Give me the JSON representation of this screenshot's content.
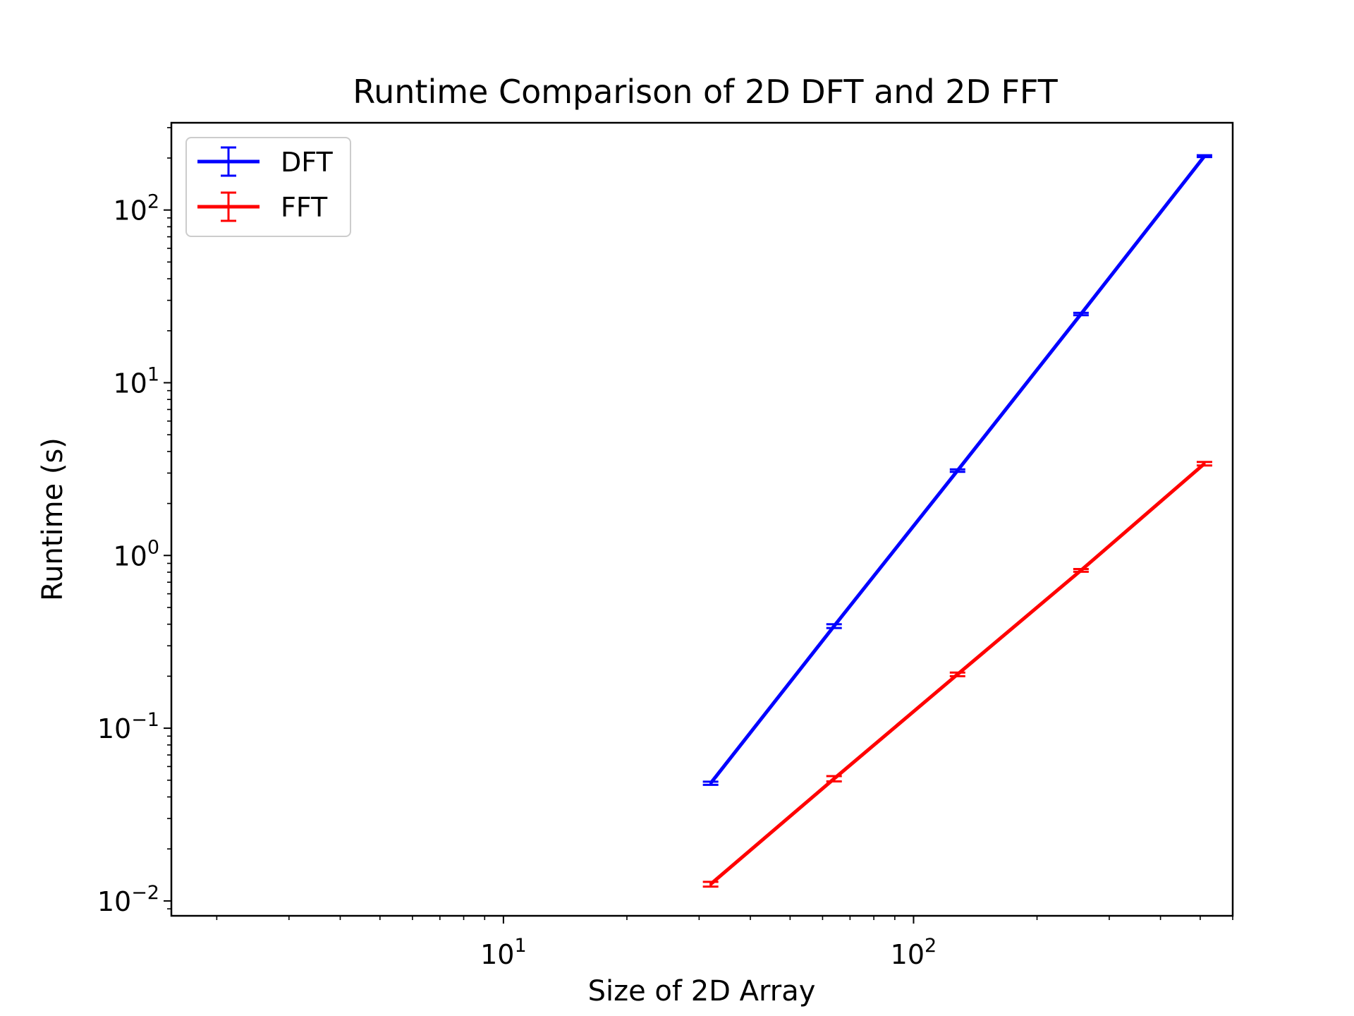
{
  "chart_data": {
    "type": "line",
    "title": "Runtime Comparison of 2D DFT and 2D FFT",
    "xlabel": "Size of 2D Array",
    "ylabel": "Runtime (s)",
    "xscale": "log",
    "yscale": "log",
    "xlim": [
      1.55,
      600
    ],
    "ylim": [
      0.0082,
      320
    ],
    "xticks": [
      {
        "value": 10,
        "label": "10",
        "exp": "1"
      },
      {
        "value": 100,
        "label": "10",
        "exp": "2"
      }
    ],
    "yticks": [
      {
        "value": 0.01,
        "label": "10",
        "exp": "−2"
      },
      {
        "value": 0.1,
        "label": "10",
        "exp": "−1"
      },
      {
        "value": 1,
        "label": "10",
        "exp": "0"
      },
      {
        "value": 10,
        "label": "10",
        "exp": "1"
      },
      {
        "value": 100,
        "label": "10",
        "exp": "2"
      }
    ],
    "grid": false,
    "legend_position": "top-left",
    "series": [
      {
        "name": "DFT",
        "color": "#0000ff",
        "x": [
          32,
          64,
          128,
          256,
          512
        ],
        "y": [
          0.048,
          0.39,
          3.1,
          25,
          205
        ],
        "yerr": [
          0.001,
          0.01,
          0.05,
          0.4,
          2.5
        ]
      },
      {
        "name": "FFT",
        "color": "#ff0000",
        "x": [
          32,
          64,
          128,
          256,
          512
        ],
        "y": [
          0.0125,
          0.051,
          0.205,
          0.82,
          3.4
        ],
        "yerr": [
          0.0004,
          0.0018,
          0.005,
          0.015,
          0.08
        ]
      }
    ]
  }
}
